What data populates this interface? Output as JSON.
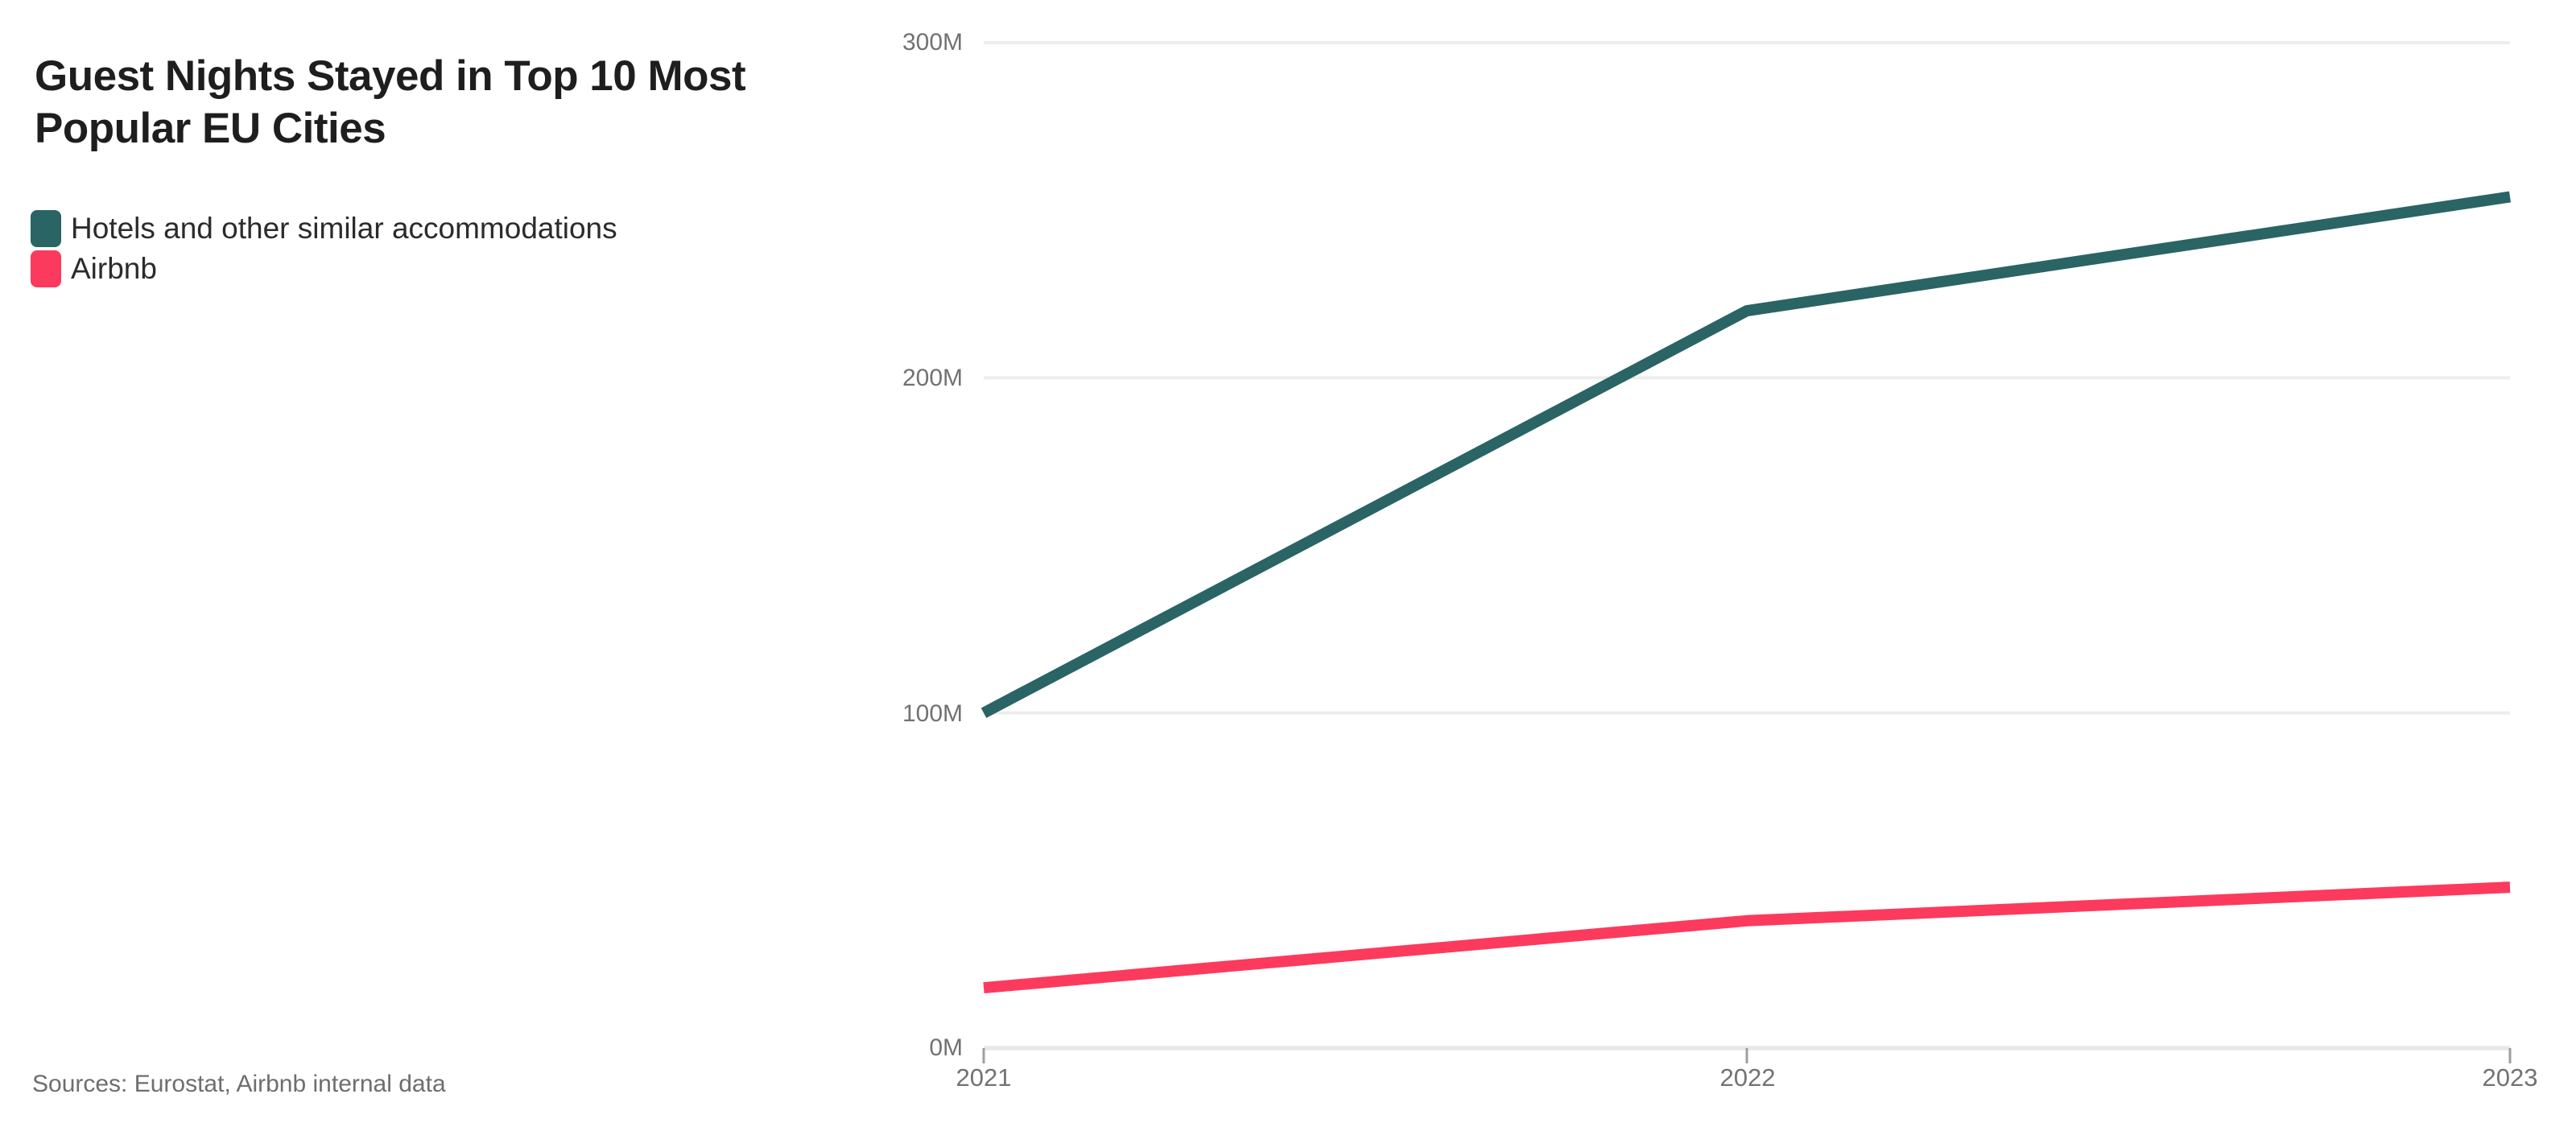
{
  "header": {
    "title": "Guest Nights Stayed in Top 10 Most Popular EU Cities"
  },
  "legend": {
    "items": [
      {
        "label": "Hotels and other similar accommodations",
        "color": "#2a6465"
      },
      {
        "label": "Airbnb",
        "color": "#fc3a5d"
      }
    ]
  },
  "footer": {
    "sources": "Sources: Eurostat, Airbnb internal data"
  },
  "colors": {
    "hotels_line": "#2a6465",
    "airbnb_line": "#fc3a5d",
    "gridline": "#ededed",
    "axis_baseline": "#e7e7e7",
    "axis_tick": "#9f9f9f",
    "tick_label": "#727272",
    "title_text": "#1e1e1e"
  },
  "chart_data": {
    "type": "line",
    "title": "Guest Nights Stayed in Top 10 Most Popular EU Cities",
    "x": [
      2021,
      2022,
      2023
    ],
    "xtick_labels": [
      "2021",
      "2022",
      "2023"
    ],
    "series": [
      {
        "name": "Hotels and other similar accommodations",
        "color": "#2a6465",
        "values": [
          100,
          220,
          254
        ]
      },
      {
        "name": "Airbnb",
        "color": "#fc3a5d",
        "values": [
          18,
          38,
          48
        ]
      }
    ],
    "unit": "M guest nights",
    "ylim": [
      0,
      300
    ],
    "yticks": [
      {
        "value": 0,
        "label": "0M"
      },
      {
        "value": 100,
        "label": "100M"
      },
      {
        "value": 200,
        "label": "200M"
      },
      {
        "value": 300,
        "label": "300M"
      }
    ],
    "grid": "horizontal-only",
    "legend_position": "top-left",
    "sources": "Sources: Eurostat, Airbnb internal data"
  }
}
